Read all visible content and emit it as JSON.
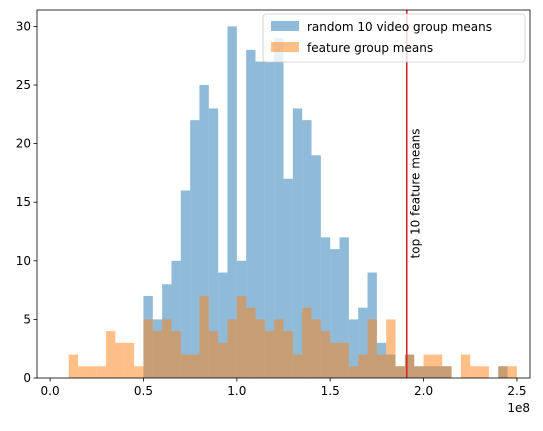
{
  "chart_data": {
    "type": "bar",
    "subtype": "histogram",
    "bin_width": 5000000,
    "x_offset_label": "1e8",
    "xlim": [
      -7000000,
      257000000
    ],
    "ylim": [
      0,
      31.4
    ],
    "x_ticks": [
      0,
      50000000,
      100000000,
      150000000,
      200000000,
      250000000
    ],
    "x_tick_labels": [
      "0.0",
      "0.5",
      "1.0",
      "1.5",
      "2.0",
      "2.5"
    ],
    "y_ticks": [
      0,
      5,
      10,
      15,
      20,
      25,
      30
    ],
    "y_tick_labels": [
      "0",
      "5",
      "10",
      "15",
      "20",
      "25",
      "30"
    ],
    "grid": false,
    "legend_position": "top-right",
    "series": [
      {
        "name": "random 10 video group means",
        "color": "#1f77b4",
        "alpha": 0.5,
        "bins": [
          [
            52500000,
            7
          ],
          [
            57500000,
            5
          ],
          [
            62500000,
            8
          ],
          [
            67500000,
            10
          ],
          [
            72500000,
            16
          ],
          [
            77500000,
            22
          ],
          [
            82500000,
            25
          ],
          [
            87500000,
            23
          ],
          [
            92500000,
            9
          ],
          [
            97500000,
            30
          ],
          [
            102500000,
            10
          ],
          [
            107500000,
            28
          ],
          [
            112500000,
            27
          ],
          [
            117500000,
            27
          ],
          [
            122500000,
            29
          ],
          [
            127500000,
            17
          ],
          [
            132500000,
            23
          ],
          [
            137500000,
            22
          ],
          [
            142500000,
            19
          ],
          [
            147500000,
            12
          ],
          [
            152500000,
            11
          ],
          [
            157500000,
            12
          ],
          [
            162500000,
            5
          ],
          [
            167500000,
            6
          ],
          [
            172500000,
            9
          ],
          [
            177500000,
            3
          ],
          [
            182500000,
            2
          ],
          [
            187500000,
            1
          ],
          [
            192500000,
            2
          ],
          [
            197500000,
            1
          ],
          [
            202500000,
            1
          ],
          [
            207500000,
            1
          ],
          [
            212500000,
            1
          ],
          [
            242500000,
            1
          ]
        ]
      },
      {
        "name": "feature group means",
        "color": "#ff7f0e",
        "alpha": 0.5,
        "bins": [
          [
            12500000,
            2
          ],
          [
            17500000,
            1
          ],
          [
            22500000,
            1
          ],
          [
            27500000,
            1
          ],
          [
            32500000,
            4
          ],
          [
            37500000,
            3
          ],
          [
            42500000,
            3
          ],
          [
            47500000,
            1
          ],
          [
            52500000,
            5
          ],
          [
            57500000,
            4
          ],
          [
            62500000,
            5
          ],
          [
            67500000,
            4
          ],
          [
            72500000,
            2
          ],
          [
            77500000,
            2
          ],
          [
            82500000,
            7
          ],
          [
            87500000,
            4
          ],
          [
            92500000,
            3
          ],
          [
            97500000,
            5
          ],
          [
            102500000,
            7
          ],
          [
            107500000,
            6
          ],
          [
            112500000,
            5
          ],
          [
            117500000,
            4
          ],
          [
            122500000,
            5
          ],
          [
            127500000,
            4
          ],
          [
            132500000,
            2
          ],
          [
            137500000,
            6
          ],
          [
            142500000,
            5
          ],
          [
            147500000,
            4
          ],
          [
            152500000,
            3
          ],
          [
            157500000,
            3
          ],
          [
            162500000,
            1
          ],
          [
            167500000,
            2
          ],
          [
            172500000,
            5
          ],
          [
            177500000,
            2
          ],
          [
            182500000,
            5
          ],
          [
            187500000,
            1
          ],
          [
            192500000,
            2
          ],
          [
            197500000,
            1
          ],
          [
            202500000,
            2
          ],
          [
            207500000,
            2
          ],
          [
            212500000,
            1
          ],
          [
            222500000,
            2
          ],
          [
            227500000,
            1
          ],
          [
            232500000,
            1
          ],
          [
            242500000,
            1
          ],
          [
            247500000,
            1
          ]
        ]
      }
    ],
    "vline": {
      "x": 191000000,
      "color": "#d62728",
      "label": "top 10 feature means"
    }
  }
}
